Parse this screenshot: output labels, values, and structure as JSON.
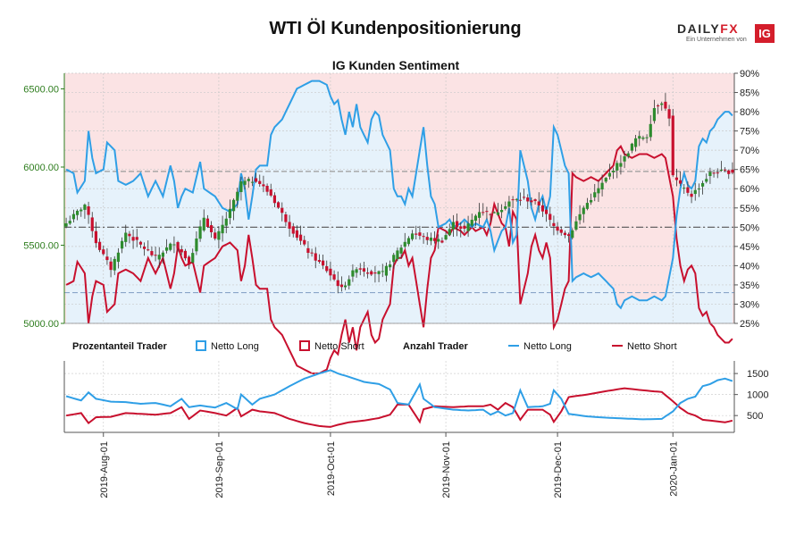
{
  "title": "WTI Öl Kundenpositionierung",
  "logo": {
    "brand_a": "DAILY",
    "brand_b": "FX",
    "subtitle": "Ein Unternehmen von",
    "badge": "IG"
  },
  "chart_data": {
    "type": "candlestick+line",
    "subtitle": "IG Kunden Sentiment",
    "colors": {
      "long": "#2f9fe6",
      "short": "#c8102e",
      "up": "#2e8b2e",
      "down": "#c8102e",
      "long_bg": "#e6f2fb",
      "short_bg": "#fbe3e4"
    },
    "price_axis": {
      "ticks": [
        5000,
        5500,
        6000,
        6500
      ],
      "labels": [
        "5000.00",
        "5500.00",
        "6000.00",
        "6500.00"
      ],
      "ylim": [
        5000,
        6600
      ]
    },
    "pct_axis": {
      "ticks": [
        25,
        30,
        35,
        40,
        45,
        50,
        55,
        60,
        65,
        70,
        75,
        80,
        85,
        90
      ],
      "labels": [
        "25%",
        "30%",
        "35%",
        "40%",
        "45%",
        "50%",
        "55%",
        "60%",
        "65%",
        "70%",
        "75%",
        "80%",
        "85%",
        "90%"
      ],
      "ylim": [
        25,
        90
      ]
    },
    "count_axis": {
      "ticks": [
        500,
        1000,
        1500
      ],
      "labels": [
        "500",
        "1000",
        "1500"
      ],
      "ylim": [
        100,
        1800
      ]
    },
    "reference_lines": {
      "upper_pct": 64.5,
      "mid_pct": 50,
      "lower_pct": 33
    },
    "x_dates": [
      "2019-Aug-01",
      "2019-Sep-01",
      "2019-Oct-01",
      "2019-Nov-01",
      "2019-Dec-01",
      "2020-Jan-01"
    ],
    "x_tick_index": [
      10,
      41,
      71,
      102,
      132,
      163
    ],
    "legend": {
      "pct_label": "Prozentanteil Trader",
      "count_label": "Anzahl Trader",
      "long": "Netto Long",
      "short": "Netto Short"
    },
    "price_keypoints": [
      [
        0,
        5640
      ],
      [
        5,
        5760
      ],
      [
        8,
        5520
      ],
      [
        12,
        5350
      ],
      [
        16,
        5580
      ],
      [
        20,
        5500
      ],
      [
        24,
        5420
      ],
      [
        29,
        5520
      ],
      [
        33,
        5390
      ],
      [
        37,
        5680
      ],
      [
        40,
        5530
      ],
      [
        44,
        5720
      ],
      [
        47,
        5900
      ],
      [
        51,
        5920
      ],
      [
        55,
        5820
      ],
      [
        60,
        5620
      ],
      [
        65,
        5460
      ],
      [
        70,
        5340
      ],
      [
        74,
        5220
      ],
      [
        78,
        5360
      ],
      [
        81,
        5330
      ],
      [
        85,
        5320
      ],
      [
        89,
        5460
      ],
      [
        93,
        5580
      ],
      [
        97,
        5540
      ],
      [
        101,
        5530
      ],
      [
        104,
        5640
      ],
      [
        107,
        5600
      ],
      [
        111,
        5720
      ],
      [
        115,
        5700
      ],
      [
        119,
        5780
      ],
      [
        123,
        5800
      ],
      [
        127,
        5760
      ],
      [
        131,
        5620
      ],
      [
        135,
        5560
      ],
      [
        139,
        5740
      ],
      [
        143,
        5860
      ],
      [
        147,
        5990
      ],
      [
        150,
        6060
      ],
      [
        153,
        6180
      ],
      [
        156,
        6200
      ],
      [
        158,
        6380
      ],
      [
        160,
        6420
      ],
      [
        162,
        6320
      ],
      [
        163,
        5940
      ],
      [
        165,
        5880
      ],
      [
        168,
        5820
      ],
      [
        171,
        5900
      ],
      [
        173,
        5960
      ],
      [
        175,
        5970
      ]
    ],
    "long_pct_keypoints": [
      [
        0,
        65
      ],
      [
        2,
        64
      ],
      [
        3,
        59
      ],
      [
        5,
        62
      ],
      [
        6,
        75
      ],
      [
        7,
        68
      ],
      [
        8,
        64
      ],
      [
        10,
        65
      ],
      [
        11,
        72
      ],
      [
        13,
        70
      ],
      [
        14,
        62
      ],
      [
        16,
        61
      ],
      [
        18,
        62
      ],
      [
        20,
        64
      ],
      [
        22,
        58
      ],
      [
        24,
        62
      ],
      [
        26,
        58
      ],
      [
        28,
        66
      ],
      [
        29,
        62
      ],
      [
        30,
        55
      ],
      [
        31,
        58
      ],
      [
        32,
        60
      ],
      [
        34,
        59
      ],
      [
        36,
        67
      ],
      [
        37,
        60
      ],
      [
        40,
        58
      ],
      [
        42,
        55
      ],
      [
        44,
        54
      ],
      [
        46,
        56
      ],
      [
        47,
        64
      ],
      [
        48,
        60
      ],
      [
        49,
        52
      ],
      [
        50,
        58
      ],
      [
        51,
        65
      ],
      [
        52,
        66
      ],
      [
        54,
        66
      ],
      [
        55,
        74
      ],
      [
        56,
        76
      ],
      [
        58,
        78
      ],
      [
        60,
        82
      ],
      [
        62,
        86
      ],
      [
        64,
        87
      ],
      [
        66,
        88
      ],
      [
        68,
        88
      ],
      [
        70,
        87
      ],
      [
        71,
        84
      ],
      [
        72,
        82
      ],
      [
        73,
        83
      ],
      [
        74,
        78
      ],
      [
        75,
        74
      ],
      [
        76,
        80
      ],
      [
        77,
        76
      ],
      [
        78,
        82
      ],
      [
        79,
        76
      ],
      [
        80,
        74
      ],
      [
        81,
        72
      ],
      [
        82,
        78
      ],
      [
        83,
        80
      ],
      [
        84,
        79
      ],
      [
        85,
        74
      ],
      [
        86,
        72
      ],
      [
        87,
        70
      ],
      [
        88,
        60
      ],
      [
        89,
        58
      ],
      [
        90,
        58
      ],
      [
        91,
        56
      ],
      [
        92,
        60
      ],
      [
        93,
        58
      ],
      [
        95,
        70
      ],
      [
        96,
        76
      ],
      [
        97,
        66
      ],
      [
        98,
        58
      ],
      [
        99,
        56
      ],
      [
        100,
        50
      ],
      [
        102,
        51
      ],
      [
        103,
        52
      ],
      [
        104,
        50
      ],
      [
        106,
        51
      ],
      [
        107,
        52
      ],
      [
        109,
        50
      ],
      [
        110,
        51
      ],
      [
        112,
        50
      ],
      [
        113,
        52
      ],
      [
        114,
        49
      ],
      [
        115,
        44
      ],
      [
        117,
        49
      ],
      [
        118,
        50
      ],
      [
        119,
        55
      ],
      [
        120,
        46
      ],
      [
        121,
        48
      ],
      [
        122,
        70
      ],
      [
        123,
        66
      ],
      [
        124,
        62
      ],
      [
        125,
        55
      ],
      [
        126,
        52
      ],
      [
        127,
        56
      ],
      [
        128,
        58
      ],
      [
        129,
        54
      ],
      [
        130,
        58
      ],
      [
        131,
        76
      ],
      [
        132,
        74
      ],
      [
        133,
        70
      ],
      [
        134,
        66
      ],
      [
        135,
        64
      ],
      [
        136,
        36
      ],
      [
        137,
        37
      ],
      [
        139,
        38
      ],
      [
        141,
        37
      ],
      [
        143,
        38
      ],
      [
        145,
        36
      ],
      [
        147,
        34
      ],
      [
        148,
        30
      ],
      [
        149,
        29
      ],
      [
        150,
        31
      ],
      [
        152,
        32
      ],
      [
        154,
        31
      ],
      [
        156,
        31
      ],
      [
        158,
        32
      ],
      [
        160,
        31
      ],
      [
        161,
        32
      ],
      [
        163,
        42
      ],
      [
        164,
        53
      ],
      [
        165,
        60
      ],
      [
        166,
        64
      ],
      [
        167,
        61
      ],
      [
        168,
        60
      ],
      [
        169,
        62
      ],
      [
        170,
        71
      ],
      [
        171,
        73
      ],
      [
        172,
        72
      ],
      [
        173,
        75
      ],
      [
        174,
        76
      ],
      [
        175,
        78
      ],
      [
        176,
        79
      ],
      [
        177,
        80
      ],
      [
        178,
        80
      ],
      [
        179,
        79
      ]
    ],
    "long_count_keypoints": [
      [
        0,
        960
      ],
      [
        4,
        860
      ],
      [
        6,
        1050
      ],
      [
        8,
        900
      ],
      [
        12,
        830
      ],
      [
        16,
        820
      ],
      [
        20,
        780
      ],
      [
        24,
        800
      ],
      [
        28,
        720
      ],
      [
        31,
        900
      ],
      [
        33,
        700
      ],
      [
        36,
        740
      ],
      [
        40,
        690
      ],
      [
        43,
        800
      ],
      [
        46,
        650
      ],
      [
        47,
        1000
      ],
      [
        50,
        760
      ],
      [
        52,
        900
      ],
      [
        56,
        1000
      ],
      [
        60,
        1200
      ],
      [
        64,
        1380
      ],
      [
        68,
        1500
      ],
      [
        71,
        1580
      ],
      [
        73,
        1500
      ],
      [
        76,
        1420
      ],
      [
        80,
        1300
      ],
      [
        84,
        1250
      ],
      [
        87,
        1120
      ],
      [
        89,
        800
      ],
      [
        92,
        760
      ],
      [
        95,
        1240
      ],
      [
        96,
        900
      ],
      [
        99,
        700
      ],
      [
        104,
        640
      ],
      [
        108,
        620
      ],
      [
        112,
        640
      ],
      [
        114,
        520
      ],
      [
        116,
        600
      ],
      [
        118,
        500
      ],
      [
        120,
        560
      ],
      [
        122,
        1100
      ],
      [
        124,
        700
      ],
      [
        128,
        720
      ],
      [
        130,
        780
      ],
      [
        131,
        1100
      ],
      [
        133,
        900
      ],
      [
        135,
        540
      ],
      [
        140,
        480
      ],
      [
        145,
        450
      ],
      [
        150,
        430
      ],
      [
        155,
        410
      ],
      [
        160,
        420
      ],
      [
        163,
        600
      ],
      [
        165,
        800
      ],
      [
        167,
        900
      ],
      [
        169,
        950
      ],
      [
        171,
        1200
      ],
      [
        173,
        1250
      ],
      [
        175,
        1340
      ],
      [
        177,
        1380
      ],
      [
        179,
        1320
      ]
    ],
    "short_count_keypoints": [
      [
        0,
        500
      ],
      [
        4,
        560
      ],
      [
        6,
        320
      ],
      [
        8,
        460
      ],
      [
        12,
        470
      ],
      [
        16,
        560
      ],
      [
        20,
        540
      ],
      [
        24,
        520
      ],
      [
        28,
        560
      ],
      [
        31,
        700
      ],
      [
        33,
        420
      ],
      [
        36,
        620
      ],
      [
        40,
        560
      ],
      [
        43,
        500
      ],
      [
        46,
        680
      ],
      [
        47,
        480
      ],
      [
        50,
        640
      ],
      [
        52,
        600
      ],
      [
        56,
        560
      ],
      [
        60,
        420
      ],
      [
        64,
        320
      ],
      [
        68,
        250
      ],
      [
        71,
        230
      ],
      [
        73,
        280
      ],
      [
        76,
        340
      ],
      [
        80,
        380
      ],
      [
        84,
        440
      ],
      [
        87,
        520
      ],
      [
        89,
        760
      ],
      [
        92,
        760
      ],
      [
        95,
        350
      ],
      [
        96,
        650
      ],
      [
        99,
        720
      ],
      [
        104,
        700
      ],
      [
        108,
        720
      ],
      [
        112,
        720
      ],
      [
        114,
        760
      ],
      [
        116,
        640
      ],
      [
        118,
        800
      ],
      [
        120,
        700
      ],
      [
        122,
        400
      ],
      [
        124,
        640
      ],
      [
        128,
        640
      ],
      [
        130,
        520
      ],
      [
        131,
        350
      ],
      [
        133,
        600
      ],
      [
        135,
        940
      ],
      [
        140,
        1000
      ],
      [
        145,
        1080
      ],
      [
        150,
        1150
      ],
      [
        155,
        1100
      ],
      [
        160,
        1060
      ],
      [
        163,
        840
      ],
      [
        165,
        680
      ],
      [
        167,
        560
      ],
      [
        169,
        500
      ],
      [
        171,
        400
      ],
      [
        173,
        380
      ],
      [
        175,
        360
      ],
      [
        177,
        340
      ],
      [
        179,
        380
      ]
    ]
  }
}
